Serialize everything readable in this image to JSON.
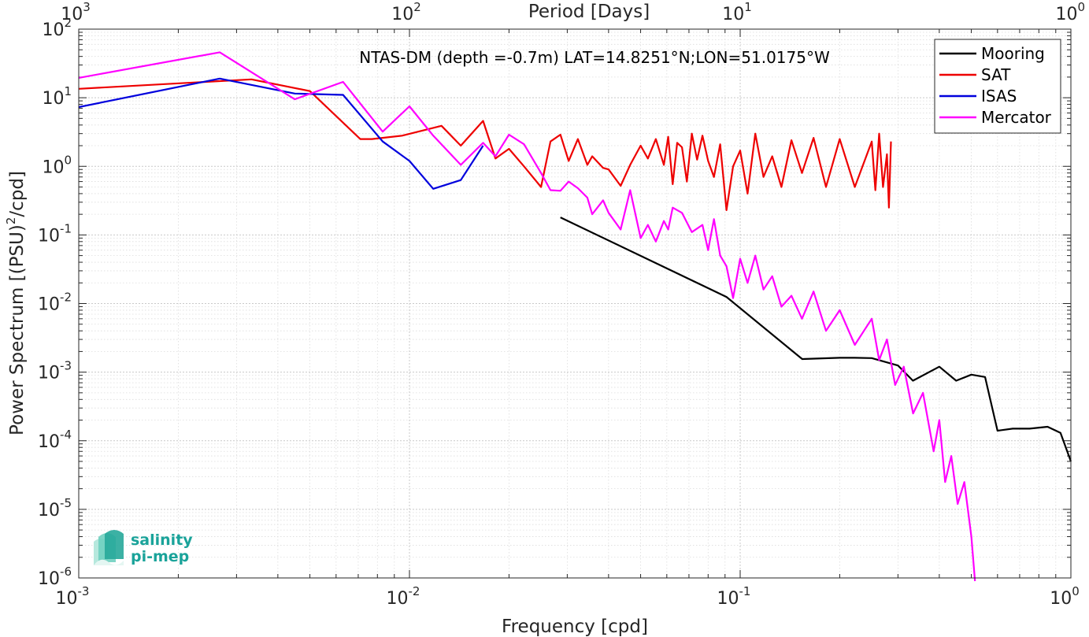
{
  "chart_data": {
    "type": "line",
    "title": "NTAS-DM (depth =-0.7m) LAT=14.8251°N;LON=51.0175°W",
    "xlabel": "Frequency [cpd]",
    "ylabel_main": "Power Spectrum [(PSU)",
    "ylabel_sup": "2",
    "ylabel_tail": "/cpd]",
    "top_xlabel": "Period [Days]",
    "xscale": "log",
    "yscale": "log",
    "xlim": [
      0.001,
      1
    ],
    "ylim": [
      1e-06,
      100
    ],
    "grid": true,
    "legend_position": "top-right",
    "x_ticks": [
      {
        "value": 0.001,
        "base": "10",
        "exp": "-3"
      },
      {
        "value": 0.01,
        "base": "10",
        "exp": "-2"
      },
      {
        "value": 0.1,
        "base": "10",
        "exp": "-1"
      },
      {
        "value": 1,
        "base": "10",
        "exp": "0"
      }
    ],
    "top_ticks": [
      {
        "value": 0.001,
        "base": "10",
        "exp": "3"
      },
      {
        "value": 0.01,
        "base": "10",
        "exp": "2"
      },
      {
        "value": 0.1,
        "base": "10",
        "exp": "1"
      },
      {
        "value": 1,
        "base": "10",
        "exp": "0"
      }
    ],
    "y_ticks": [
      {
        "value": 100,
        "base": "10",
        "exp": "2"
      },
      {
        "value": 10,
        "base": "10",
        "exp": "1"
      },
      {
        "value": 1,
        "base": "10",
        "exp": "0"
      },
      {
        "value": 0.1,
        "base": "10",
        "exp": "-1"
      },
      {
        "value": 0.01,
        "base": "10",
        "exp": "-2"
      },
      {
        "value": 0.001,
        "base": "10",
        "exp": "-3"
      },
      {
        "value": 0.0001,
        "base": "10",
        "exp": "-4"
      },
      {
        "value": 1e-05,
        "base": "10",
        "exp": "-5"
      },
      {
        "value": 1e-06,
        "base": "10",
        "exp": "-6"
      }
    ],
    "series": [
      {
        "name": "Mooring",
        "color": "#000000",
        "x": [
          0.0286,
          0.0909,
          0.154,
          0.2,
          0.222,
          0.25,
          0.3,
          0.333,
          0.4,
          0.45,
          0.5,
          0.55,
          0.6,
          0.667,
          0.75,
          0.85,
          0.93,
          1.0
        ],
        "y": [
          0.18,
          0.0125,
          0.00155,
          0.00162,
          0.00162,
          0.0016,
          0.00125,
          0.00075,
          0.0012,
          0.00075,
          0.00092,
          0.00085,
          0.00014,
          0.00015,
          0.00015,
          0.00016,
          0.00013,
          5e-05
        ]
      },
      {
        "name": "SAT",
        "color": "#ee0000",
        "x": [
          0.001,
          0.00267,
          0.00333,
          0.005,
          0.0071,
          0.0077,
          0.0095,
          0.0125,
          0.0143,
          0.0167,
          0.0182,
          0.02,
          0.0222,
          0.025,
          0.0267,
          0.0286,
          0.0303,
          0.0323,
          0.0345,
          0.0357,
          0.0385,
          0.04,
          0.0435,
          0.0465,
          0.05,
          0.0526,
          0.0556,
          0.0588,
          0.0606,
          0.0625,
          0.0645,
          0.0667,
          0.069,
          0.0714,
          0.0741,
          0.0769,
          0.08,
          0.0833,
          0.087,
          0.0909,
          0.0952,
          0.1,
          0.1053,
          0.1111,
          0.1176,
          0.125,
          0.1333,
          0.1429,
          0.1538,
          0.1667,
          0.1818,
          0.2,
          0.2222,
          0.25,
          0.2564,
          0.2632,
          0.2703,
          0.2778,
          0.2817,
          0.2857
        ],
        "y": [
          13.5,
          17.5,
          18.5,
          12.5,
          2.5,
          2.5,
          2.8,
          3.9,
          2.0,
          4.6,
          1.3,
          1.8,
          1.0,
          0.5,
          2.3,
          2.9,
          1.2,
          2.5,
          1.05,
          1.4,
          0.95,
          0.9,
          0.52,
          1.05,
          2.0,
          1.3,
          2.5,
          1.05,
          2.7,
          0.55,
          2.2,
          1.9,
          0.6,
          3.0,
          1.25,
          2.8,
          1.2,
          0.7,
          2.1,
          0.23,
          1.0,
          1.7,
          0.4,
          3.0,
          0.7,
          1.4,
          0.5,
          2.4,
          0.8,
          2.6,
          0.5,
          2.5,
          0.5,
          2.3,
          0.45,
          3.0,
          0.5,
          1.5,
          0.25,
          2.3
        ]
      },
      {
        "name": "ISAS",
        "color": "#0000dd",
        "x": [
          0.001,
          0.00267,
          0.0045,
          0.0063,
          0.0083,
          0.01,
          0.0118,
          0.0143,
          0.0167
        ],
        "y": [
          7.3,
          19.0,
          11.5,
          11.0,
          2.3,
          1.2,
          0.47,
          0.63,
          2.0
        ]
      },
      {
        "name": "Mercator",
        "color": "#ff00ff",
        "x": [
          0.001,
          0.00267,
          0.0045,
          0.0063,
          0.0083,
          0.01,
          0.0118,
          0.0143,
          0.0167,
          0.0182,
          0.02,
          0.0222,
          0.025,
          0.0267,
          0.0286,
          0.0303,
          0.0323,
          0.0345,
          0.0357,
          0.0385,
          0.04,
          0.0435,
          0.0465,
          0.05,
          0.0526,
          0.0556,
          0.0588,
          0.0606,
          0.0625,
          0.0667,
          0.0714,
          0.0769,
          0.08,
          0.0833,
          0.087,
          0.0909,
          0.0952,
          0.1,
          0.1053,
          0.1111,
          0.1176,
          0.125,
          0.1333,
          0.1429,
          0.1538,
          0.1667,
          0.1818,
          0.2,
          0.2222,
          0.25,
          0.2632,
          0.2778,
          0.2941,
          0.3125,
          0.3333,
          0.3571,
          0.3846,
          0.4,
          0.4167,
          0.4348,
          0.4545,
          0.4762,
          0.5,
          0.5128
        ],
        "y": [
          19.5,
          46.0,
          9.5,
          17.0,
          3.2,
          7.5,
          2.8,
          1.05,
          2.2,
          1.4,
          2.9,
          2.1,
          0.8,
          0.45,
          0.44,
          0.6,
          0.48,
          0.35,
          0.2,
          0.32,
          0.21,
          0.12,
          0.45,
          0.09,
          0.14,
          0.08,
          0.16,
          0.12,
          0.25,
          0.21,
          0.11,
          0.14,
          0.06,
          0.17,
          0.05,
          0.035,
          0.012,
          0.045,
          0.02,
          0.05,
          0.016,
          0.025,
          0.009,
          0.013,
          0.006,
          0.015,
          0.004,
          0.008,
          0.0025,
          0.006,
          0.0015,
          0.003,
          0.00065,
          0.0012,
          0.00025,
          0.0005,
          7e-05,
          0.0002,
          2.5e-05,
          6e-05,
          1.2e-05,
          2.5e-05,
          4e-06,
          9e-07
        ]
      }
    ]
  },
  "logo": {
    "line1": "salinity",
    "line2": "pi-mep",
    "color": "#1aa39a"
  }
}
